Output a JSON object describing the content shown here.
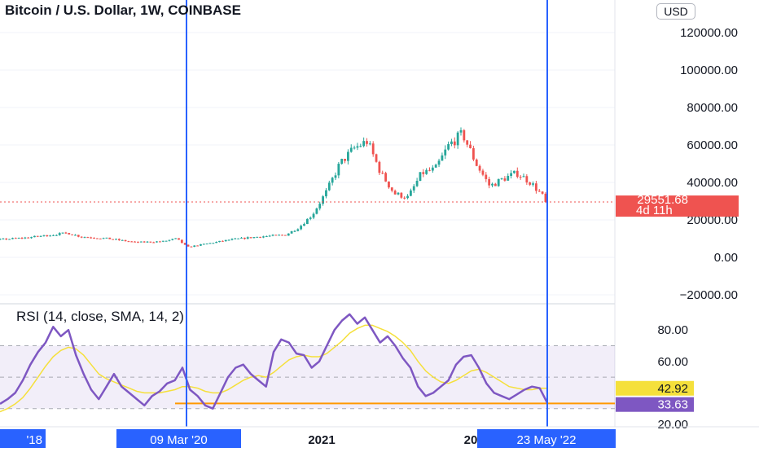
{
  "header": {
    "title": "Bitcoin / U.S. Dollar, 1W, COINBASE",
    "currency_button": "USD"
  },
  "price_axis": {
    "ticks": [
      "120000.00",
      "100000.00",
      "80000.00",
      "60000.00",
      "40000.00",
      "20000.00",
      "0.00",
      "−20000.00"
    ],
    "tick_values": [
      120000,
      100000,
      80000,
      60000,
      40000,
      20000,
      0,
      -20000
    ]
  },
  "last_price": {
    "value": 29551.68,
    "label": "29551.68",
    "countdown": "4d 11h",
    "color": "#ef5350"
  },
  "rsi": {
    "title": "RSI (14, close, SMA, 14, 2)",
    "ticks": [
      "80.00",
      "60.00",
      "20.00"
    ],
    "tick_values": [
      80,
      60,
      20
    ],
    "upper_band": 70,
    "lower_band": 30,
    "rsi_value_label": "33.63",
    "sma_value_label": "42.92",
    "rsi_color": "#7e57c2",
    "sma_color": "#f5e03b",
    "support_line_value": 33.3,
    "support_line_color": "#ff9800"
  },
  "time_axis": {
    "labels": [
      "'18",
      "09 Mar '20",
      "2021",
      "20",
      "23 May '22"
    ],
    "highlighted": [
      "'18",
      "09 Mar '20",
      "23 May '22"
    ]
  },
  "annotations": {
    "vertical_lines": [
      "09 Mar '20",
      "23 May '22"
    ],
    "line_color": "#2962ff"
  },
  "chart_data": [
    {
      "type": "candlestick",
      "title": "Bitcoin / U.S. Dollar, 1W, COINBASE",
      "interval": "1W",
      "ylim": [
        -20000,
        130000
      ],
      "x_labels": [
        "2021"
      ],
      "close_path": [
        [
          "2018-02",
          6500
        ],
        [
          "2018-04",
          7000
        ],
        [
          "2018-06",
          7500
        ],
        [
          "2018-09",
          7300
        ],
        [
          "2018-12",
          9000
        ],
        [
          "2019-03",
          10500
        ],
        [
          "2019-06",
          13000
        ],
        [
          "2019-07",
          11000
        ],
        [
          "2019-09",
          10000
        ],
        [
          "2019-11",
          8000
        ],
        [
          "2020-01",
          8500
        ],
        [
          "2020-02",
          10000
        ],
        [
          "2020-03-09",
          5500
        ],
        [
          "2020-04",
          7000
        ],
        [
          "2020-06",
          9500
        ],
        [
          "2020-08",
          11000
        ],
        [
          "2020-10",
          12000
        ],
        [
          "2020-11",
          16000
        ],
        [
          "2020-12",
          23000
        ],
        [
          "2021-01",
          35000
        ],
        [
          "2021-02",
          50000
        ],
        [
          "2021-03",
          58000
        ],
        [
          "2021-04",
          62000
        ],
        [
          "2021-05",
          45000
        ],
        [
          "2021-06",
          34000
        ],
        [
          "2021-07",
          32000
        ],
        [
          "2021-08",
          45000
        ],
        [
          "2021-09",
          47000
        ],
        [
          "2021-10",
          60000
        ],
        [
          "2021-11",
          66000
        ],
        [
          "2021-12",
          50000
        ],
        [
          "2022-01",
          38000
        ],
        [
          "2022-02",
          42000
        ],
        [
          "2022-03",
          45000
        ],
        [
          "2022-04",
          40000
        ],
        [
          "2022-05-23",
          29551.68
        ]
      ]
    },
    {
      "type": "line",
      "title": "RSI (14, close, SMA, 14, 2)",
      "ylim": [
        17,
        95
      ],
      "series": [
        {
          "name": "RSI",
          "values": [
            33,
            36,
            40,
            48,
            58,
            66,
            72,
            82,
            76,
            80,
            64,
            52,
            42,
            36,
            44,
            52,
            44,
            40,
            36,
            32,
            38,
            41,
            46,
            48,
            56,
            42,
            38,
            32,
            30,
            40,
            50,
            56,
            58,
            52,
            48,
            44,
            66,
            74,
            72,
            65,
            64,
            56,
            60,
            70,
            80,
            86,
            90,
            84,
            88,
            80,
            72,
            76,
            70,
            62,
            56,
            44,
            38,
            40,
            44,
            48,
            58,
            63,
            64,
            56,
            46,
            40,
            38,
            36,
            39,
            42,
            44,
            43,
            33.63
          ]
        },
        {
          "name": "SMA",
          "values": [
            28,
            30,
            33,
            37,
            43,
            50,
            57,
            63,
            67,
            69,
            68,
            64,
            58,
            52,
            49,
            47,
            45,
            43,
            41,
            40,
            40,
            40,
            41,
            42,
            44,
            44,
            43,
            41,
            40,
            40,
            42,
            45,
            48,
            50,
            51,
            50,
            53,
            57,
            61,
            63,
            64,
            63,
            63,
            65,
            69,
            73,
            78,
            81,
            83,
            83,
            81,
            79,
            76,
            72,
            67,
            60,
            54,
            50,
            47,
            46,
            48,
            51,
            54,
            55,
            53,
            50,
            47,
            44,
            43,
            42,
            42,
            43,
            42.92
          ]
        }
      ]
    }
  ]
}
